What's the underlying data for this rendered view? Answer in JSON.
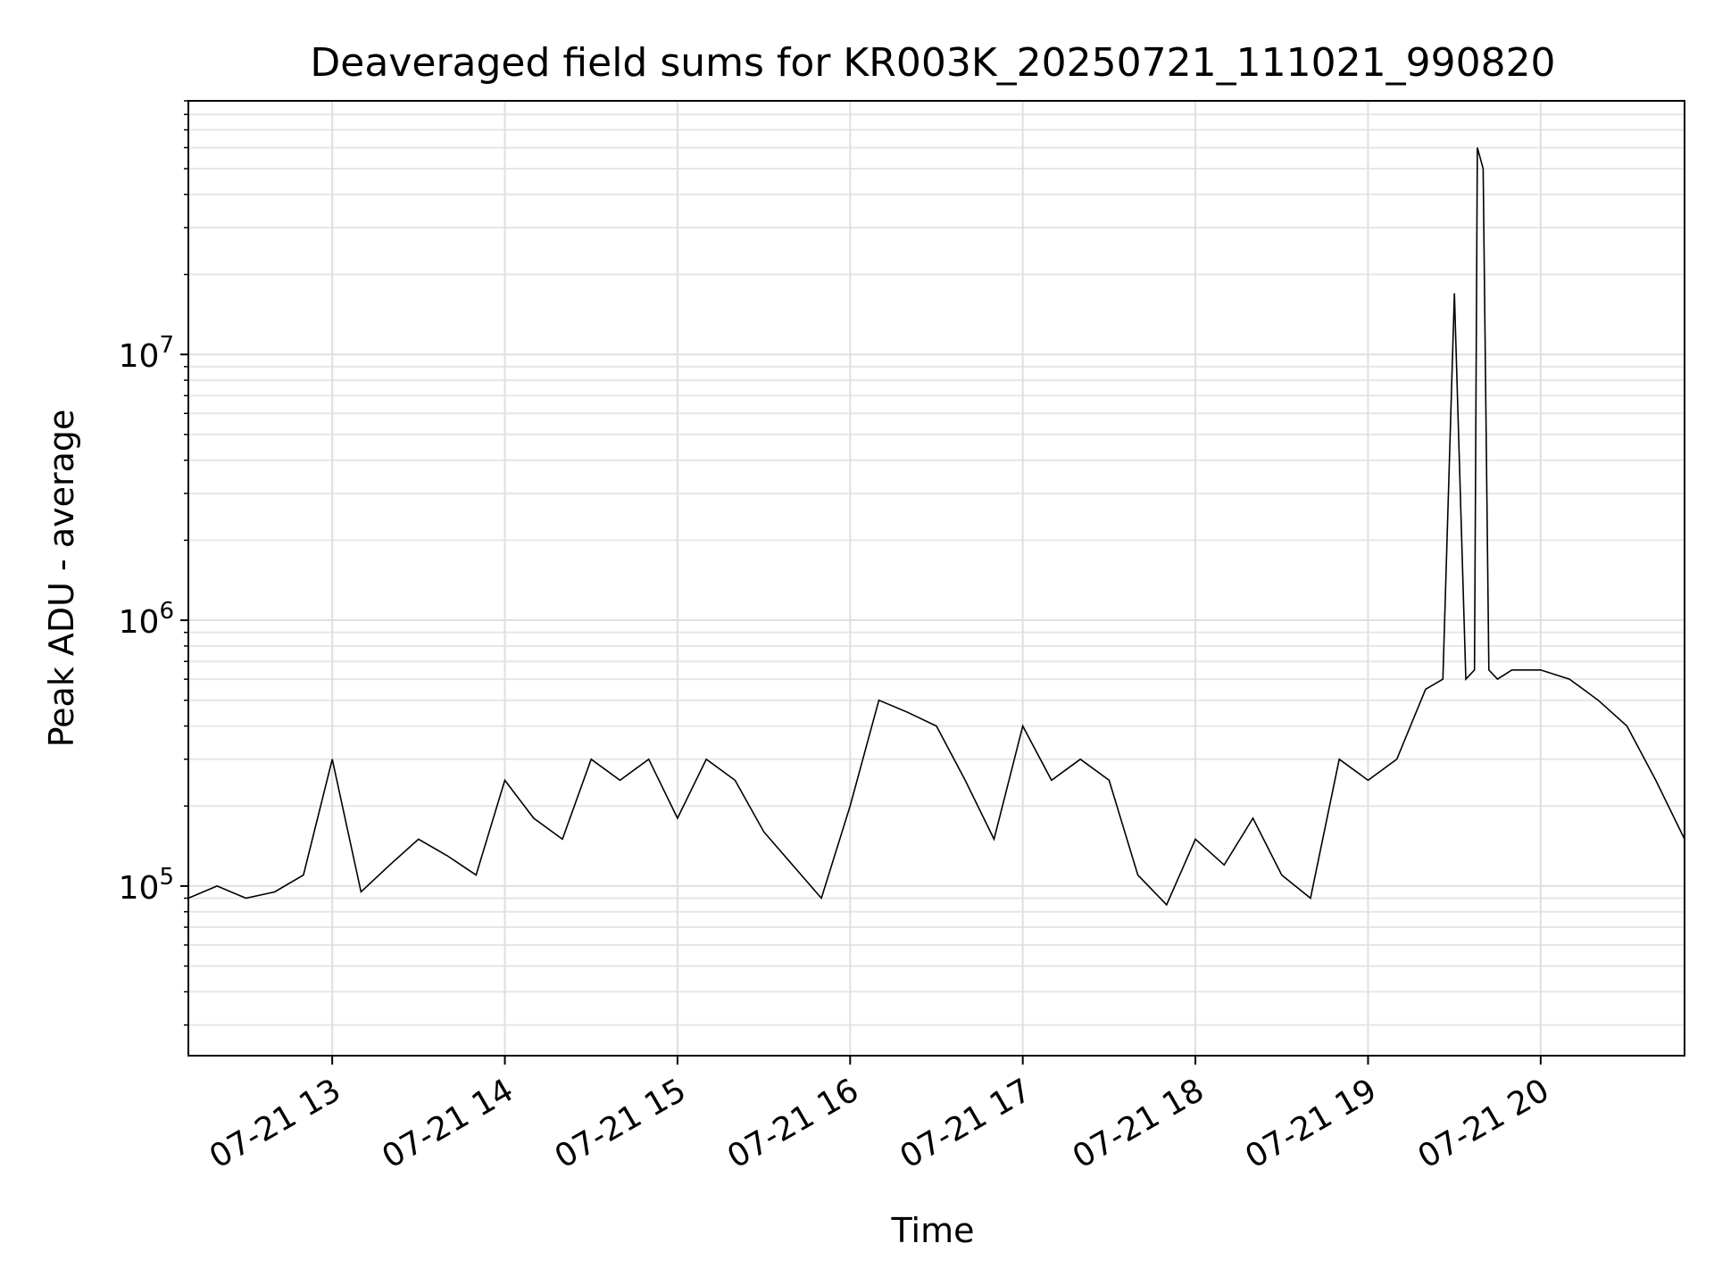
{
  "chart_data": {
    "type": "line",
    "title": "Deaveraged field sums for KR003K_20250721_111021_990820",
    "xlabel": "Time",
    "ylabel": "Peak ADU - average",
    "y_scale": "log",
    "ylim": [
      23000,
      90000000
    ],
    "xlim": [
      "2025-07-21 12:10",
      "2025-07-21 20:50"
    ],
    "x_ticks": [
      {
        "t": "2025-07-21 13:00",
        "label": "07-21 13"
      },
      {
        "t": "2025-07-21 14:00",
        "label": "07-21 14"
      },
      {
        "t": "2025-07-21 15:00",
        "label": "07-21 15"
      },
      {
        "t": "2025-07-21 16:00",
        "label": "07-21 16"
      },
      {
        "t": "2025-07-21 17:00",
        "label": "07-21 17"
      },
      {
        "t": "2025-07-21 18:00",
        "label": "07-21 18"
      },
      {
        "t": "2025-07-21 19:00",
        "label": "07-21 19"
      },
      {
        "t": "2025-07-21 20:00",
        "label": "07-21 20"
      }
    ],
    "y_ticks": [
      {
        "value": 100000,
        "label_base": "10",
        "label_exp": "5"
      },
      {
        "value": 1000000,
        "label_base": "10",
        "label_exp": "6"
      },
      {
        "value": 10000000,
        "label_base": "10",
        "label_exp": "7"
      }
    ],
    "grid": true,
    "line_color": "#000000",
    "series": [
      {
        "x": [
          "2025-07-21 12:10",
          "2025-07-21 12:20",
          "2025-07-21 12:30",
          "2025-07-21 12:40",
          "2025-07-21 12:50",
          "2025-07-21 13:00",
          "2025-07-21 13:10",
          "2025-07-21 13:20",
          "2025-07-21 13:30",
          "2025-07-21 13:40",
          "2025-07-21 13:50",
          "2025-07-21 14:00",
          "2025-07-21 14:10",
          "2025-07-21 14:20",
          "2025-07-21 14:30",
          "2025-07-21 14:40",
          "2025-07-21 14:50",
          "2025-07-21 15:00",
          "2025-07-21 15:10",
          "2025-07-21 15:20",
          "2025-07-21 15:30",
          "2025-07-21 15:40",
          "2025-07-21 15:50",
          "2025-07-21 16:00",
          "2025-07-21 16:10",
          "2025-07-21 16:20",
          "2025-07-21 16:30",
          "2025-07-21 16:40",
          "2025-07-21 16:50",
          "2025-07-21 17:00",
          "2025-07-21 17:10",
          "2025-07-21 17:20",
          "2025-07-21 17:30",
          "2025-07-21 17:40",
          "2025-07-21 17:50",
          "2025-07-21 18:00",
          "2025-07-21 18:10",
          "2025-07-21 18:20",
          "2025-07-21 18:30",
          "2025-07-21 18:40",
          "2025-07-21 18:50",
          "2025-07-21 19:00",
          "2025-07-21 19:10",
          "2025-07-21 19:20",
          "2025-07-21 19:26",
          "2025-07-21 19:30",
          "2025-07-21 19:34",
          "2025-07-21 19:37",
          "2025-07-21 19:38",
          "2025-07-21 19:40",
          "2025-07-21 19:42",
          "2025-07-21 19:45",
          "2025-07-21 19:50",
          "2025-07-21 20:00",
          "2025-07-21 20:10",
          "2025-07-21 20:20",
          "2025-07-21 20:30",
          "2025-07-21 20:40",
          "2025-07-21 20:50"
        ],
        "y": [
          90000,
          100000,
          90000,
          95000,
          110000,
          300000,
          95000,
          120000,
          150000,
          130000,
          110000,
          250000,
          180000,
          150000,
          300000,
          250000,
          300000,
          180000,
          300000,
          250000,
          160000,
          120000,
          90000,
          200000,
          500000,
          450000,
          400000,
          250000,
          150000,
          400000,
          250000,
          300000,
          250000,
          110000,
          85000,
          150000,
          120000,
          180000,
          110000,
          90000,
          300000,
          250000,
          300000,
          550000,
          600000,
          17000000,
          600000,
          650000,
          60000000,
          50000000,
          650000,
          600000,
          650000,
          650000,
          600000,
          500000,
          400000,
          250000,
          150000
        ]
      }
    ]
  }
}
